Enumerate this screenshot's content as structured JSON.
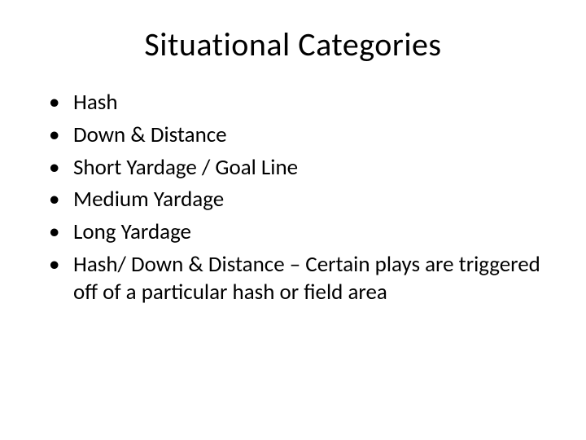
{
  "title": "Situational Categories",
  "bullets": [
    "Hash",
    "Down & Distance",
    "Short Yardage / Goal Line",
    "Medium Yardage",
    "Long Yardage",
    "Hash/ Down & Distance – Certain plays are triggered off of a particular hash or field area"
  ],
  "colors": {
    "background": "#ffffff",
    "text": "#000000"
  },
  "typography": {
    "title_fontsize": 40,
    "bullet_fontsize": 27,
    "font_family": "Calibri"
  }
}
